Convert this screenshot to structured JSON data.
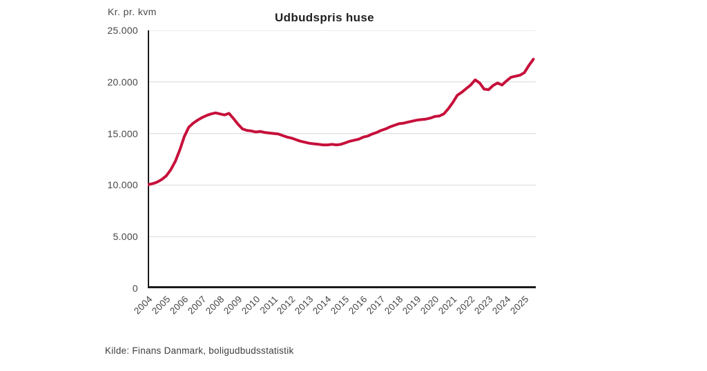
{
  "chart": {
    "title": "Udbudspris huse",
    "unit_label": "Kr. pr. kvm",
    "source": "Kilde: Finans Danmark, boligudbudsstatistik",
    "colors": {
      "line": "#C6103A",
      "grid": "#D9D9D9",
      "axis": "#1A1A1A",
      "tick_text": "#454545",
      "title_text": "#1F1F1F",
      "background": "#FFFFFF"
    }
  },
  "chart_data": {
    "type": "line",
    "title": "Udbudspris huse",
    "ylabel": "Kr. pr. kvm",
    "xlabel": "",
    "ylim": [
      0,
      25000
    ],
    "xlim": [
      2004,
      2025.6
    ],
    "grid": "horizontal-only",
    "legend": "none",
    "yticks": [
      {
        "value": 0,
        "label": "0"
      },
      {
        "value": 5000,
        "label": "5.000"
      },
      {
        "value": 10000,
        "label": "10.000"
      },
      {
        "value": 15000,
        "label": "15.000"
      },
      {
        "value": 20000,
        "label": "20.000"
      },
      {
        "value": 25000,
        "label": "25.000"
      }
    ],
    "xticks": [
      "2004",
      "2005",
      "2006",
      "2007",
      "2008",
      "2009",
      "2010",
      "2011",
      "2012",
      "2013",
      "2014",
      "2015",
      "2016",
      "2017",
      "2018",
      "2019",
      "2020",
      "2021",
      "2022",
      "2023",
      "2024",
      "2025"
    ],
    "series": [
      {
        "name": "Udbudspris huse, kr. pr. kvm",
        "color": "#C6103A",
        "points": [
          [
            2004.0,
            10050
          ],
          [
            2004.25,
            10150
          ],
          [
            2004.5,
            10300
          ],
          [
            2004.75,
            10550
          ],
          [
            2005.0,
            10900
          ],
          [
            2005.25,
            11500
          ],
          [
            2005.5,
            12300
          ],
          [
            2005.75,
            13400
          ],
          [
            2006.0,
            14700
          ],
          [
            2006.25,
            15600
          ],
          [
            2006.5,
            16000
          ],
          [
            2006.75,
            16300
          ],
          [
            2007.0,
            16550
          ],
          [
            2007.25,
            16750
          ],
          [
            2007.5,
            16900
          ],
          [
            2007.75,
            17000
          ],
          [
            2008.0,
            16900
          ],
          [
            2008.25,
            16800
          ],
          [
            2008.5,
            16950
          ],
          [
            2008.75,
            16450
          ],
          [
            2009.0,
            15900
          ],
          [
            2009.25,
            15450
          ],
          [
            2009.5,
            15300
          ],
          [
            2009.75,
            15250
          ],
          [
            2010.0,
            15150
          ],
          [
            2010.25,
            15200
          ],
          [
            2010.5,
            15100
          ],
          [
            2010.75,
            15050
          ],
          [
            2011.0,
            15000
          ],
          [
            2011.25,
            14950
          ],
          [
            2011.5,
            14800
          ],
          [
            2011.75,
            14650
          ],
          [
            2012.0,
            14550
          ],
          [
            2012.25,
            14400
          ],
          [
            2012.5,
            14250
          ],
          [
            2012.75,
            14150
          ],
          [
            2013.0,
            14050
          ],
          [
            2013.25,
            14000
          ],
          [
            2013.5,
            13950
          ],
          [
            2013.75,
            13900
          ],
          [
            2014.0,
            13900
          ],
          [
            2014.25,
            13950
          ],
          [
            2014.5,
            13900
          ],
          [
            2014.75,
            13950
          ],
          [
            2015.0,
            14100
          ],
          [
            2015.25,
            14250
          ],
          [
            2015.5,
            14350
          ],
          [
            2015.75,
            14450
          ],
          [
            2016.0,
            14650
          ],
          [
            2016.25,
            14750
          ],
          [
            2016.5,
            14950
          ],
          [
            2016.75,
            15100
          ],
          [
            2017.0,
            15300
          ],
          [
            2017.25,
            15450
          ],
          [
            2017.5,
            15650
          ],
          [
            2017.75,
            15800
          ],
          [
            2018.0,
            15950
          ],
          [
            2018.25,
            16000
          ],
          [
            2018.5,
            16100
          ],
          [
            2018.75,
            16200
          ],
          [
            2019.0,
            16300
          ],
          [
            2019.25,
            16350
          ],
          [
            2019.5,
            16400
          ],
          [
            2019.75,
            16500
          ],
          [
            2020.0,
            16650
          ],
          [
            2020.25,
            16700
          ],
          [
            2020.5,
            16900
          ],
          [
            2020.75,
            17400
          ],
          [
            2021.0,
            18000
          ],
          [
            2021.25,
            18700
          ],
          [
            2021.5,
            19000
          ],
          [
            2021.75,
            19350
          ],
          [
            2022.0,
            19700
          ],
          [
            2022.25,
            20200
          ],
          [
            2022.5,
            19900
          ],
          [
            2022.75,
            19300
          ],
          [
            2023.0,
            19250
          ],
          [
            2023.25,
            19650
          ],
          [
            2023.5,
            19900
          ],
          [
            2023.75,
            19700
          ],
          [
            2024.0,
            20100
          ],
          [
            2024.25,
            20450
          ],
          [
            2024.5,
            20550
          ],
          [
            2024.75,
            20650
          ],
          [
            2025.0,
            20900
          ],
          [
            2025.25,
            21600
          ],
          [
            2025.5,
            22200
          ]
        ]
      }
    ],
    "source": "Kilde: Finans Danmark, boligudbudsstatistik"
  }
}
